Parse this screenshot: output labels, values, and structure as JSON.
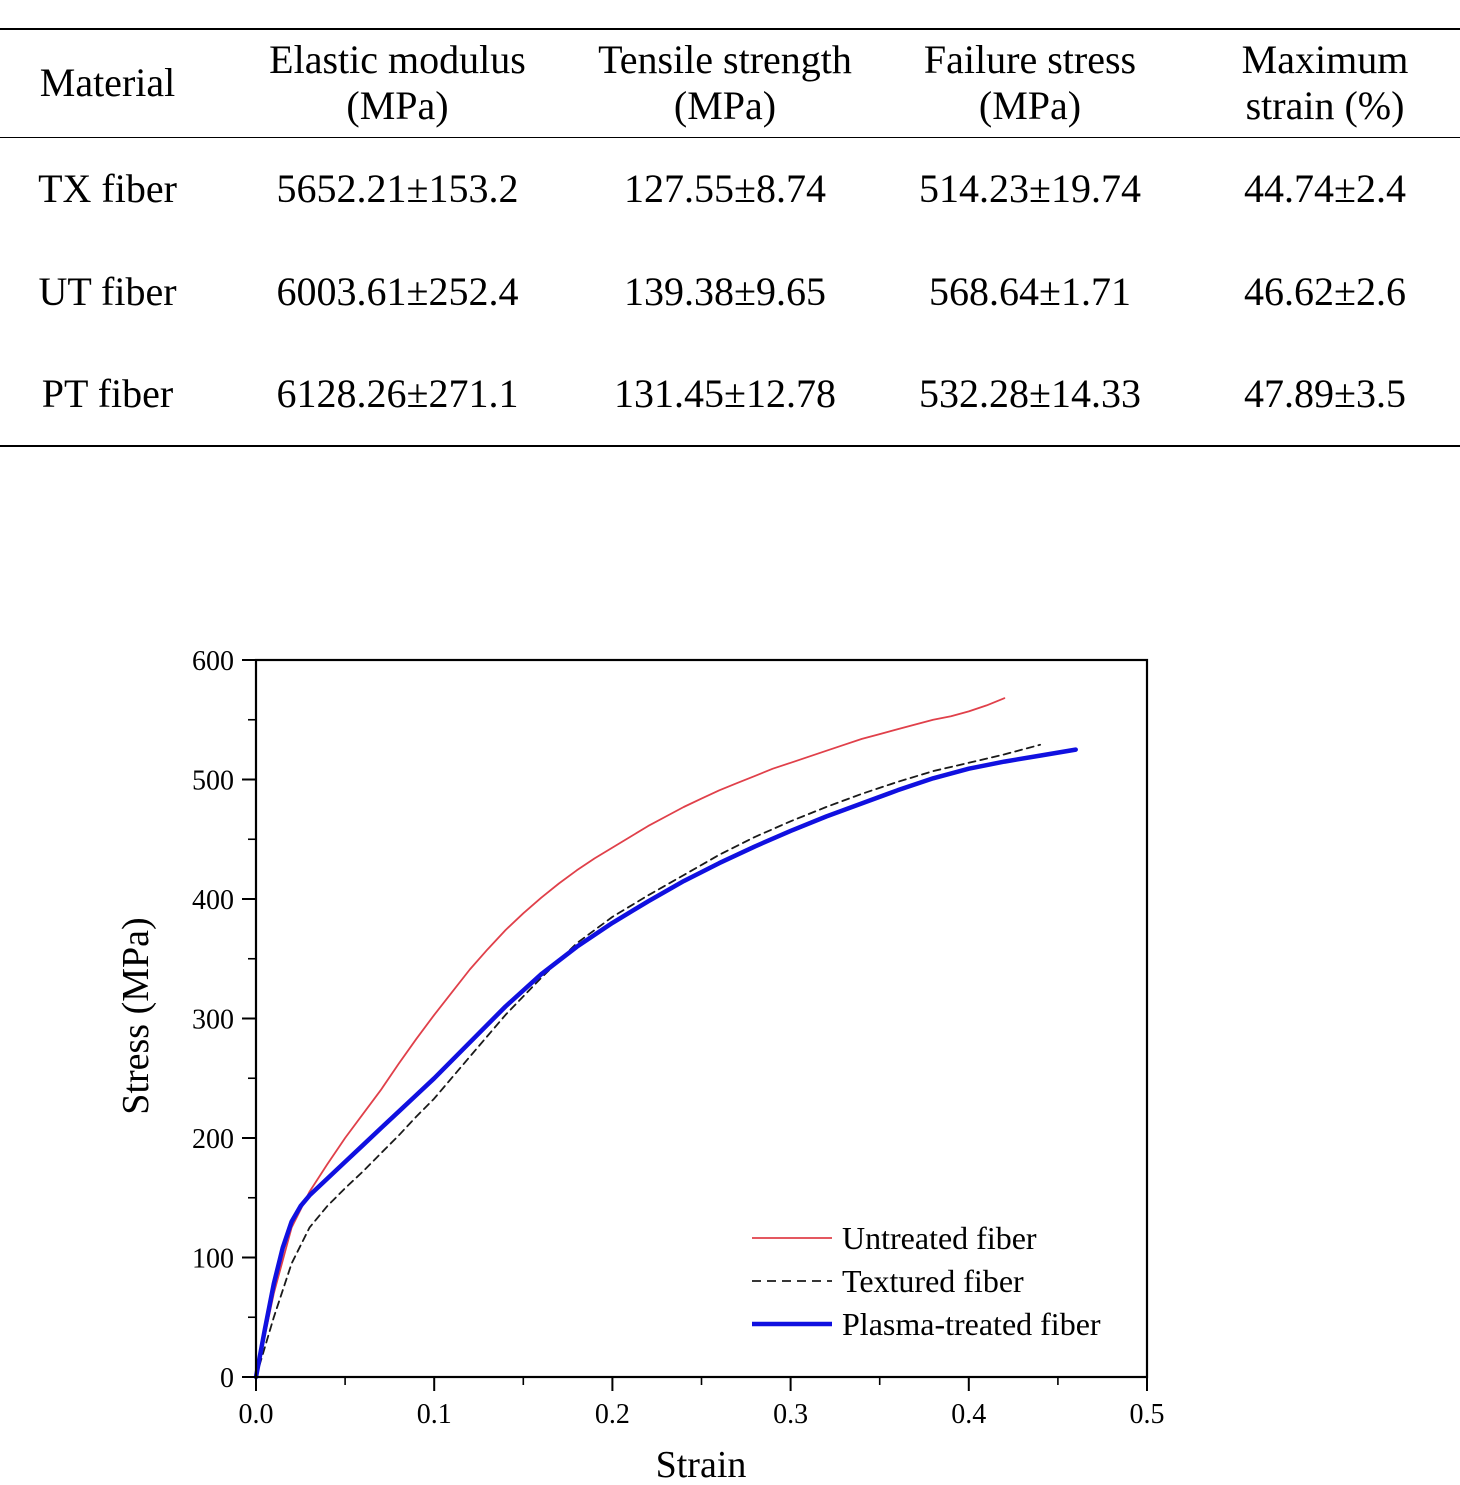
{
  "table": {
    "headers": [
      [
        "Material"
      ],
      [
        "Elastic modulus",
        "(MPa)"
      ],
      [
        "Tensile strength",
        "(MPa)"
      ],
      [
        "Failure stress",
        "(MPa)"
      ],
      [
        "Maximum",
        "strain (%)"
      ]
    ],
    "rows": [
      [
        "TX fiber",
        "5652.21±153.2",
        "127.55±8.74",
        "514.23±19.74",
        "44.74±2.4"
      ],
      [
        "UT fiber",
        "6003.61±252.4",
        "139.38±9.65",
        "568.64±1.71",
        "46.62±2.6"
      ],
      [
        "PT fiber",
        "6128.26±271.1",
        "131.45±12.78",
        "532.28±14.33",
        "47.89±3.5"
      ]
    ]
  },
  "chart_data": {
    "type": "line",
    "title": "",
    "xlabel": "Strain",
    "ylabel": "Stress (MPa)",
    "xlim": [
      0,
      0.5
    ],
    "ylim": [
      0,
      600
    ],
    "x_ticks": [
      "0.0",
      "0.1",
      "0.2",
      "0.3",
      "0.4",
      "0.5"
    ],
    "y_ticks": [
      "0",
      "100",
      "200",
      "300",
      "400",
      "500",
      "600"
    ],
    "grid": false,
    "legend_position": "bottom-right",
    "series": [
      {
        "name": "Untreated fiber",
        "color": "#e0404a",
        "style": "solid-thin",
        "x": [
          0,
          0.01,
          0.02,
          0.03,
          0.04,
          0.05,
          0.06,
          0.07,
          0.08,
          0.09,
          0.1,
          0.11,
          0.12,
          0.13,
          0.14,
          0.15,
          0.16,
          0.17,
          0.18,
          0.19,
          0.2,
          0.21,
          0.22,
          0.23,
          0.24,
          0.25,
          0.26,
          0.27,
          0.28,
          0.29,
          0.3,
          0.31,
          0.32,
          0.33,
          0.34,
          0.35,
          0.36,
          0.37,
          0.38,
          0.39,
          0.4,
          0.41,
          0.42
        ],
        "y": [
          0,
          70,
          125,
          155,
          178,
          200,
          220,
          240,
          262,
          283,
          303,
          322,
          341,
          358,
          374,
          388,
          401,
          413,
          424,
          434,
          443,
          452,
          461,
          469,
          477,
          484,
          491,
          497,
          503,
          509,
          514,
          519,
          524,
          529,
          534,
          538,
          542,
          546,
          550,
          553,
          557,
          562,
          568
        ]
      },
      {
        "name": "Textured fiber",
        "color": "#1a1a1a",
        "style": "dashed",
        "x": [
          0,
          0.01,
          0.02,
          0.03,
          0.04,
          0.05,
          0.06,
          0.07,
          0.08,
          0.09,
          0.1,
          0.12,
          0.14,
          0.16,
          0.18,
          0.2,
          0.22,
          0.24,
          0.26,
          0.28,
          0.3,
          0.32,
          0.34,
          0.36,
          0.38,
          0.4,
          0.42,
          0.44
        ],
        "y": [
          0,
          50,
          95,
          125,
          143,
          158,
          172,
          187,
          202,
          218,
          233,
          268,
          303,
          334,
          363,
          385,
          403,
          420,
          437,
          452,
          465,
          477,
          488,
          498,
          507,
          514,
          521,
          529
        ]
      },
      {
        "name": "Plasma-treated fiber",
        "color": "#1010e0",
        "style": "solid-thick",
        "x": [
          0,
          0.005,
          0.01,
          0.015,
          0.02,
          0.025,
          0.03,
          0.04,
          0.05,
          0.06,
          0.07,
          0.08,
          0.09,
          0.1,
          0.12,
          0.14,
          0.16,
          0.18,
          0.2,
          0.22,
          0.24,
          0.26,
          0.28,
          0.3,
          0.32,
          0.34,
          0.36,
          0.38,
          0.4,
          0.42,
          0.44,
          0.46
        ],
        "y": [
          0,
          40,
          78,
          108,
          130,
          143,
          152,
          166,
          180,
          194,
          208,
          222,
          236,
          250,
          280,
          310,
          337,
          360,
          380,
          398,
          415,
          430,
          444,
          457,
          469,
          480,
          491,
          501,
          509,
          515,
          520,
          525
        ]
      }
    ]
  }
}
